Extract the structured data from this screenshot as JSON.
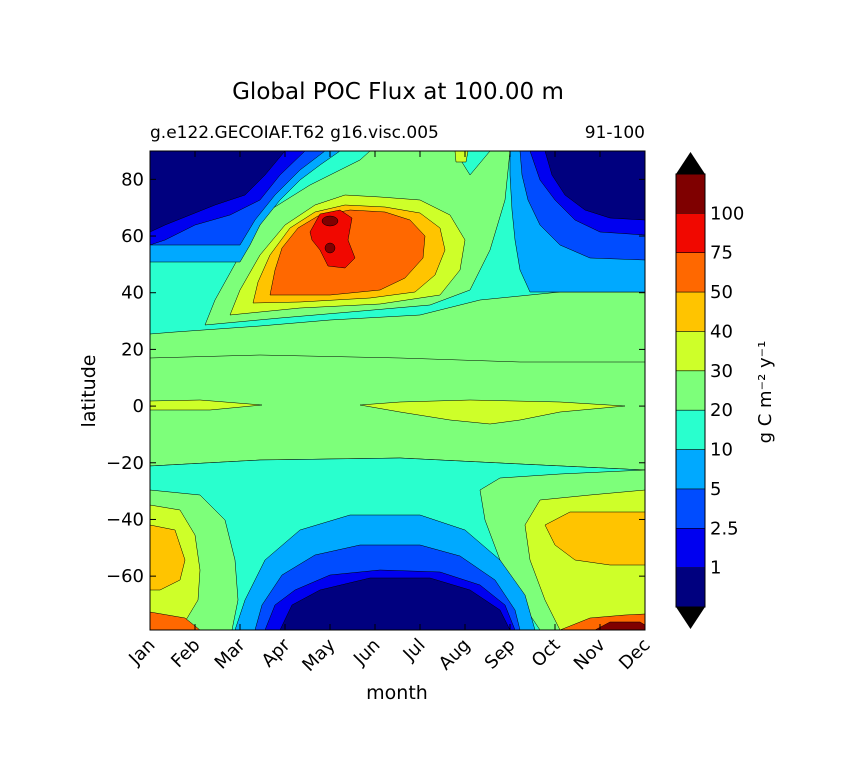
{
  "chart_data": {
    "type": "heatmap",
    "title": "Global POC Flux at 100.00 m",
    "subtitle_left": "g.e122.GECOIAF.T62 g16.visc.005",
    "subtitle_right": "91-100",
    "xlabel": "month",
    "ylabel": "latitude",
    "x_ticks": [
      "Jan",
      "Feb",
      "Mar",
      "Apr",
      "May",
      "Jun",
      "Jul",
      "Aug",
      "Sep",
      "Oct",
      "Nov",
      "Dec"
    ],
    "y_ticks": [
      "80",
      "60",
      "40",
      "20",
      "0",
      "−20",
      "−40",
      "−60"
    ],
    "y_tick_values": [
      80,
      60,
      40,
      20,
      0,
      -20,
      -40,
      -60
    ],
    "ylim": [
      -79,
      90
    ],
    "colorbar": {
      "label": "g C m⁻² y⁻¹",
      "levels": [
        "1",
        "2.5",
        "5",
        "10",
        "20",
        "30",
        "40",
        "50",
        "75",
        "100"
      ],
      "colors": [
        "#00007f",
        "#0000f0",
        "#004cff",
        "#00a9ff",
        "#29ffce",
        "#7dff7a",
        "#ceff29",
        "#ffc400",
        "#ff6800",
        "#f10800",
        "#7f0000"
      ],
      "extend": "both"
    },
    "regions_desc": [
      {
        "label": "north-high-lat-winter",
        "level_index": 0
      },
      {
        "label": "north-bloom",
        "level_index": 9
      },
      {
        "label": "equatorial-band",
        "level_index": 6
      },
      {
        "label": "southern-ocean-summer",
        "level_index": 8
      },
      {
        "label": "antarctic-winter",
        "level_index": 0
      }
    ]
  }
}
